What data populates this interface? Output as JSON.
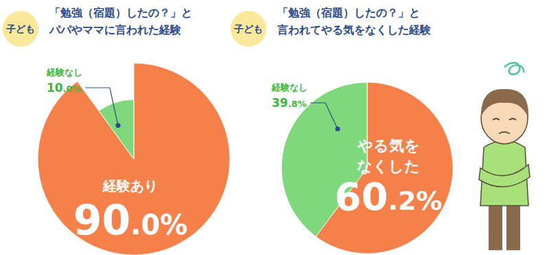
{
  "chart_data": [
    {
      "type": "pie",
      "subtitle": "子ども",
      "title": "「勉強（宿題）したの？」と\nパパやママに言われた経験",
      "categories": [
        "経験あり",
        "経験なし"
      ],
      "values": [
        90,
        10
      ],
      "value_labels": [
        "90.0%",
        "10.0%"
      ],
      "colors": [
        "#f5804a",
        "#7fd97c"
      ],
      "data_labels": true
    },
    {
      "type": "pie",
      "subtitle": "子ども",
      "title": "「勉強（宿題）したの？」と\n言われてやる気をなくした経験",
      "categories": [
        "やる気を\nなくした",
        "経験なし"
      ],
      "values": [
        60.2,
        39.8
      ],
      "value_labels": [
        "60.2%",
        "39.8%"
      ],
      "colors": [
        "#f5804a",
        "#7fd97c"
      ],
      "data_labels": true
    }
  ]
}
